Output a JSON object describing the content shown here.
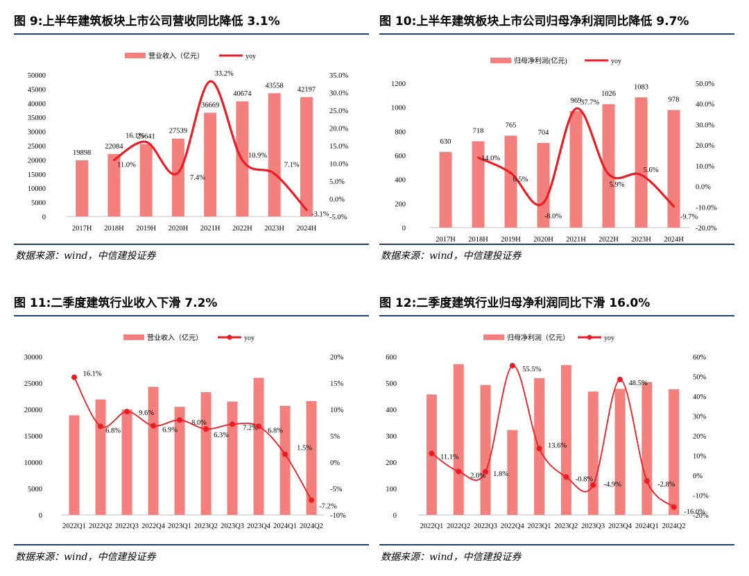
{
  "colors": {
    "bar": "#f4807d",
    "line": "#ec1c24",
    "rule": "#1c3f66"
  },
  "charts": [
    {
      "title": "图 9:上半年建筑板块上市公司营收同比降低 3.1%",
      "source": "数据来源：wind，中信建投证券",
      "chart_data": {
        "type": "bar+line",
        "categories": [
          "2017H",
          "2018H",
          "2019H",
          "2020H",
          "2021H",
          "2022H",
          "2023H",
          "2024H"
        ],
        "series": [
          {
            "name": "营业收入（亿元）",
            "type": "bar",
            "axis": "left",
            "values": [
              19898,
              22084,
              25641,
              27539,
              36669,
              40674,
              43558,
              42197
            ],
            "labels": [
              "19898",
              "22084",
              "25641",
              "27539",
              "36669",
              "40674",
              "43558",
              "42197"
            ]
          },
          {
            "name": "yoy",
            "type": "line",
            "axis": "right",
            "smooth": true,
            "markers": false,
            "values": [
              null,
              11.0,
              16.1,
              7.4,
              33.2,
              10.9,
              7.1,
              -3.1
            ],
            "labels": [
              "",
              "11.0%",
              "16.1%",
              "7.4%",
              "33.2%",
              "10.9%",
              "7.1%",
              "-3.1%"
            ]
          }
        ],
        "y_left": {
          "min": 0,
          "max": 50000,
          "step": 5000,
          "ticks": [
            "0",
            "5000",
            "10000",
            "15000",
            "20000",
            "25000",
            "30000",
            "35000",
            "40000",
            "45000",
            "50000"
          ]
        },
        "y_right": {
          "min": -5,
          "max": 35,
          "step": 5,
          "ticks": [
            "-5.0%",
            "0.0%",
            "5.0%",
            "10.0%",
            "15.0%",
            "20.0%",
            "25.0%",
            "30.0%",
            "35.0%"
          ]
        },
        "legend": "top-center",
        "grid": false
      }
    },
    {
      "title": "图 10:上半年建筑板块上市公司归母净利润同比降低 9.7%",
      "source": "数据来源：wind，中信建投证券",
      "chart_data": {
        "type": "bar+line",
        "categories": [
          "2017H",
          "2018H",
          "2019H",
          "2020H",
          "2021H",
          "2022H",
          "2023H",
          "2024H"
        ],
        "series": [
          {
            "name": "归母净利润(亿元)",
            "type": "bar",
            "axis": "left",
            "values": [
              630,
              718,
              765,
              704,
              969,
              1026,
              1083,
              978
            ],
            "labels": [
              "630",
              "718",
              "765",
              "704",
              "969",
              "1026",
              "1083",
              "978"
            ]
          },
          {
            "name": "yoy",
            "type": "line",
            "axis": "right",
            "smooth": true,
            "markers": false,
            "values": [
              null,
              14.0,
              6.5,
              -8.0,
              37.7,
              5.9,
              5.6,
              -9.7
            ],
            "labels": [
              "",
              "14.0%",
              "6.5%",
              "-8.0%",
              "37.7%",
              "5.9%",
              "5.6%",
              "-9.7%"
            ]
          }
        ],
        "y_left": {
          "min": 0,
          "max": 1200,
          "step": 200,
          "ticks": [
            "0",
            "200",
            "400",
            "600",
            "800",
            "1000",
            "1200"
          ]
        },
        "y_right": {
          "min": -20,
          "max": 50,
          "step": 10,
          "ticks": [
            "-20.0%",
            "-10.0%",
            "0.0%",
            "10.0%",
            "20.0%",
            "30.0%",
            "40.0%",
            "50.0%"
          ]
        },
        "legend": "top-center",
        "grid": false
      }
    },
    {
      "title": "图 11:二季度建筑行业收入下滑 7.2%",
      "source": "数据来源：wind，中信建投证券",
      "chart_data": {
        "type": "bar+line",
        "categories": [
          "2022Q1",
          "2022Q2",
          "2022Q3",
          "2022Q4",
          "2023Q1",
          "2023Q2",
          "2023Q3",
          "2023Q4",
          "2024Q1",
          "2024Q2"
        ],
        "series": [
          {
            "name": "营业收入（亿元）",
            "type": "bar",
            "axis": "left",
            "values": [
              18900,
              21900,
              20000,
              24300,
              20500,
              23300,
              21500,
              26000,
              20700,
              21600
            ],
            "labels": []
          },
          {
            "name": "yoy",
            "type": "line",
            "axis": "right",
            "smooth": true,
            "markers": true,
            "values": [
              16.1,
              6.8,
              9.6,
              6.9,
              8.0,
              6.3,
              7.2,
              6.8,
              1.5,
              -7.2
            ],
            "labels": [
              "16.1%",
              "6.8%",
              "9.6%",
              "6.9%",
              "8.0%",
              "6.3%",
              "7.2%",
              "6.8%",
              "1.5%",
              "-7.2%"
            ]
          }
        ],
        "y_left": {
          "min": 0,
          "max": 30000,
          "step": 5000,
          "ticks": [
            "0",
            "5000",
            "10000",
            "15000",
            "20000",
            "25000",
            "30000"
          ]
        },
        "y_right": {
          "min": -10,
          "max": 20,
          "step": 5,
          "ticks": [
            "-10%",
            "-5%",
            "0%",
            "5%",
            "10%",
            "15%",
            "20%"
          ]
        },
        "legend": "top-center",
        "grid": false
      }
    },
    {
      "title": "图 12:二季度建筑行业归母净利润同比下滑 16.0%",
      "source": "数据来源：wind，中信建投证券",
      "chart_data": {
        "type": "bar+line",
        "categories": [
          "2022Q1",
          "2022Q2",
          "2022Q3",
          "2022Q4",
          "2023Q1",
          "2023Q2",
          "2023Q3",
          "2023Q4",
          "2024Q1",
          "2024Q2"
        ],
        "series": [
          {
            "name": "归母净利润（亿元）",
            "type": "bar",
            "axis": "left",
            "values": [
              457,
              572,
              493,
              322,
              519,
              568,
              468,
              478,
              504,
              477
            ],
            "labels": []
          },
          {
            "name": "yoy",
            "type": "line",
            "axis": "right",
            "smooth": true,
            "markers": true,
            "values": [
              11.1,
              2.0,
              1.8,
              55.5,
              13.6,
              -0.8,
              -4.9,
              48.5,
              -2.8,
              -16.0
            ],
            "labels": [
              "11.1%",
              "2.0%",
              "1.8%",
              "55.5%",
              "13.6%",
              "-0.8%",
              "-4.9%",
              "48.5%",
              "-2.8%",
              "-16.0%"
            ]
          }
        ],
        "y_left": {
          "min": 0,
          "max": 600,
          "step": 100,
          "ticks": [
            "0",
            "100",
            "200",
            "300",
            "400",
            "500",
            "600"
          ]
        },
        "y_right": {
          "min": -20,
          "max": 60,
          "step": 10,
          "ticks": [
            "-20%",
            "-10%",
            "0%",
            "10%",
            "20%",
            "30%",
            "40%",
            "50%",
            "60%"
          ]
        },
        "legend": "top-center",
        "grid": false
      }
    }
  ]
}
